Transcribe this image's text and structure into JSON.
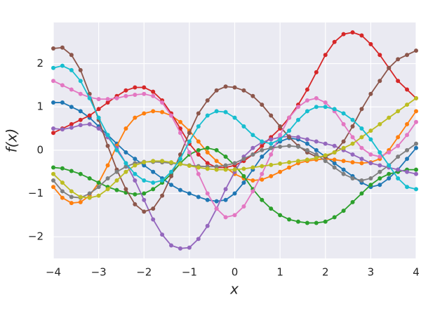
{
  "chart_data": {
    "type": "line",
    "xlabel": "x",
    "ylabel": "f(x)",
    "xlim": [
      -4,
      4
    ],
    "ylim": [
      -2.5,
      2.95
    ],
    "grid": true,
    "marker": "circle",
    "xticks": [
      {
        "value": -4,
        "label": "−4"
      },
      {
        "value": -3,
        "label": "−3"
      },
      {
        "value": -2,
        "label": "−2"
      },
      {
        "value": -1,
        "label": "−1"
      },
      0,
      1,
      2,
      3,
      4
    ],
    "yticks": [
      {
        "value": -2,
        "label": "−2"
      },
      {
        "value": -1,
        "label": "−1"
      },
      0,
      1,
      2
    ],
    "x": [
      -4,
      -3.8,
      -3.6,
      -3.4,
      -3.2,
      -3,
      -2.8,
      -2.6,
      -2.4,
      -2.2,
      -2,
      -1.8,
      -1.6,
      -1.4,
      -1.2,
      -1,
      -0.8,
      -0.6,
      -0.4,
      -0.2,
      0,
      0.2,
      0.4,
      0.6,
      0.8,
      1,
      1.2,
      1.4,
      1.6,
      1.8,
      2,
      2.2,
      2.4,
      2.6,
      2.8,
      3,
      3.2,
      3.4,
      3.6,
      3.8,
      4
    ],
    "series": [
      {
        "color": "#1f77b4",
        "values": [
          1.1,
          1.1,
          1.0,
          0.9,
          0.75,
          0.55,
          0.35,
          0.15,
          -0.05,
          -0.2,
          -0.35,
          -0.5,
          -0.65,
          -0.8,
          -0.92,
          -1.0,
          -1.08,
          -1.15,
          -1.18,
          -1.15,
          -1.0,
          -0.75,
          -0.45,
          -0.15,
          0.05,
          0.2,
          0.28,
          0.25,
          0.15,
          0.0,
          -0.15,
          -0.3,
          -0.45,
          -0.6,
          -0.75,
          -0.85,
          -0.8,
          -0.65,
          -0.45,
          -0.2,
          0.05
        ]
      },
      {
        "color": "#ff7f0e",
        "values": [
          -0.85,
          -1.1,
          -1.22,
          -1.2,
          -1.05,
          -0.75,
          -0.35,
          0.1,
          0.5,
          0.75,
          0.85,
          0.9,
          0.88,
          0.8,
          0.65,
          0.45,
          0.2,
          -0.05,
          -0.25,
          -0.4,
          -0.55,
          -0.65,
          -0.7,
          -0.68,
          -0.6,
          -0.5,
          -0.4,
          -0.3,
          -0.25,
          -0.22,
          -0.2,
          -0.22,
          -0.25,
          -0.28,
          -0.3,
          -0.28,
          -0.2,
          0.0,
          0.3,
          0.6,
          0.9
        ]
      },
      {
        "color": "#2ca02c",
        "values": [
          -0.4,
          -0.42,
          -0.48,
          -0.55,
          -0.65,
          -0.75,
          -0.85,
          -0.92,
          -0.98,
          -1.02,
          -1.0,
          -0.9,
          -0.75,
          -0.55,
          -0.3,
          -0.1,
          0.0,
          0.05,
          0.0,
          -0.15,
          -0.35,
          -0.6,
          -0.9,
          -1.15,
          -1.35,
          -1.5,
          -1.6,
          -1.65,
          -1.68,
          -1.68,
          -1.65,
          -1.55,
          -1.4,
          -1.2,
          -1.0,
          -0.8,
          -0.65,
          -0.55,
          -0.5,
          -0.45,
          -0.45
        ]
      },
      {
        "color": "#d62728",
        "values": [
          0.4,
          0.5,
          0.6,
          0.7,
          0.8,
          0.95,
          1.1,
          1.25,
          1.38,
          1.45,
          1.45,
          1.35,
          1.15,
          0.85,
          0.5,
          0.15,
          -0.1,
          -0.3,
          -0.4,
          -0.4,
          -0.35,
          -0.25,
          -0.1,
          0.1,
          0.3,
          0.5,
          0.75,
          1.05,
          1.4,
          1.8,
          2.2,
          2.5,
          2.68,
          2.72,
          2.65,
          2.45,
          2.2,
          1.9,
          1.6,
          1.4,
          1.2
        ]
      },
      {
        "color": "#9467bd",
        "values": [
          0.5,
          0.48,
          0.52,
          0.58,
          0.6,
          0.5,
          0.3,
          0.05,
          -0.3,
          -0.7,
          -1.15,
          -1.6,
          -1.95,
          -2.2,
          -2.27,
          -2.25,
          -2.05,
          -1.75,
          -1.35,
          -0.9,
          -0.5,
          -0.15,
          0.05,
          0.18,
          0.25,
          0.3,
          0.32,
          0.3,
          0.25,
          0.2,
          0.15,
          0.1,
          0.0,
          -0.1,
          -0.2,
          -0.3,
          -0.35,
          -0.4,
          -0.45,
          -0.5,
          -0.55
        ]
      },
      {
        "color": "#8c564b",
        "values": [
          2.35,
          2.37,
          2.2,
          1.85,
          1.3,
          0.7,
          0.1,
          -0.45,
          -0.9,
          -1.25,
          -1.42,
          -1.35,
          -1.05,
          -0.6,
          -0.1,
          0.4,
          0.85,
          1.15,
          1.38,
          1.47,
          1.45,
          1.38,
          1.25,
          1.05,
          0.8,
          0.55,
          0.3,
          0.1,
          -0.05,
          -0.15,
          -0.15,
          -0.05,
          0.2,
          0.55,
          0.95,
          1.3,
          1.6,
          1.9,
          2.1,
          2.2,
          2.3
        ]
      },
      {
        "color": "#e377c2",
        "values": [
          1.6,
          1.5,
          1.4,
          1.3,
          1.22,
          1.18,
          1.18,
          1.2,
          1.25,
          1.28,
          1.3,
          1.25,
          1.1,
          0.8,
          0.4,
          -0.05,
          -0.55,
          -1.0,
          -1.35,
          -1.55,
          -1.5,
          -1.3,
          -0.95,
          -0.55,
          -0.1,
          0.35,
          0.75,
          1.0,
          1.15,
          1.2,
          1.1,
          0.9,
          0.6,
          0.3,
          0.05,
          -0.1,
          -0.15,
          -0.05,
          0.1,
          0.35,
          0.65
        ]
      },
      {
        "color": "#7f7f7f",
        "values": [
          -0.7,
          -0.95,
          -1.08,
          -1.1,
          -1.0,
          -0.85,
          -0.65,
          -0.5,
          -0.38,
          -0.3,
          -0.27,
          -0.27,
          -0.28,
          -0.3,
          -0.32,
          -0.35,
          -0.37,
          -0.38,
          -0.38,
          -0.35,
          -0.3,
          -0.2,
          -0.1,
          0.0,
          0.05,
          0.08,
          0.1,
          0.08,
          0.0,
          -0.1,
          -0.25,
          -0.4,
          -0.55,
          -0.65,
          -0.7,
          -0.65,
          -0.5,
          -0.35,
          -0.15,
          0.0,
          0.15
        ]
      },
      {
        "color": "#bcbd22",
        "values": [
          -0.55,
          -0.75,
          -0.95,
          -1.08,
          -1.1,
          -1.05,
          -0.9,
          -0.7,
          -0.5,
          -0.35,
          -0.28,
          -0.25,
          -0.25,
          -0.28,
          -0.32,
          -0.36,
          -0.4,
          -0.43,
          -0.45,
          -0.45,
          -0.45,
          -0.43,
          -0.4,
          -0.37,
          -0.34,
          -0.31,
          -0.28,
          -0.25,
          -0.22,
          -0.18,
          -0.12,
          -0.05,
          0.05,
          0.15,
          0.3,
          0.45,
          0.6,
          0.75,
          0.9,
          1.05,
          1.2
        ]
      },
      {
        "color": "#17becf",
        "values": [
          1.9,
          1.95,
          1.85,
          1.6,
          1.2,
          0.75,
          0.35,
          0.0,
          -0.3,
          -0.55,
          -0.7,
          -0.75,
          -0.7,
          -0.5,
          -0.2,
          0.2,
          0.55,
          0.8,
          0.9,
          0.88,
          0.75,
          0.55,
          0.35,
          0.2,
          0.15,
          0.25,
          0.45,
          0.7,
          0.9,
          1.0,
          1.0,
          0.95,
          0.85,
          0.7,
          0.5,
          0.25,
          -0.05,
          -0.35,
          -0.65,
          -0.85,
          -0.9
        ]
      }
    ]
  }
}
